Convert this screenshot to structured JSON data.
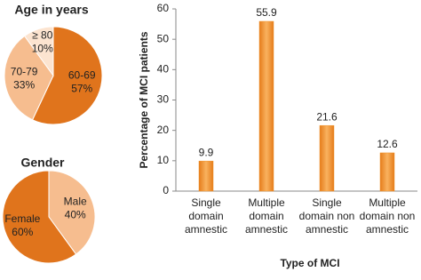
{
  "chart_data": [
    {
      "type": "pie",
      "title": "Age in years",
      "categories": [
        "60-69",
        "70-79",
        "≥ 80"
      ],
      "values": [
        57,
        33,
        10
      ],
      "value_labels": [
        "57%",
        "33%",
        "10%"
      ],
      "colors": [
        "#e0741c",
        "#f6bd8f",
        "#fce4d0"
      ]
    },
    {
      "type": "pie",
      "title": "Gender",
      "categories": [
        "Male",
        "Female"
      ],
      "values": [
        40,
        60
      ],
      "value_labels": [
        "40%",
        "60%"
      ],
      "colors": [
        "#f6bd8f",
        "#e0741c"
      ]
    },
    {
      "type": "bar",
      "categories": [
        [
          "Single",
          "domain",
          "amnestic"
        ],
        [
          "Multiple",
          "domain",
          "amnestic"
        ],
        [
          "Single",
          "domain non",
          "amnestic"
        ],
        [
          "Multiple",
          "domain non",
          "amnestic"
        ]
      ],
      "values": [
        9.9,
        55.9,
        21.6,
        12.6
      ],
      "color": "#f0922a",
      "ylim": [
        0,
        60
      ],
      "yticks": [
        0,
        10,
        20,
        30,
        40,
        50,
        60
      ],
      "y_label": "Percentage of MCI patients",
      "x_label": "Type of MCI"
    }
  ]
}
